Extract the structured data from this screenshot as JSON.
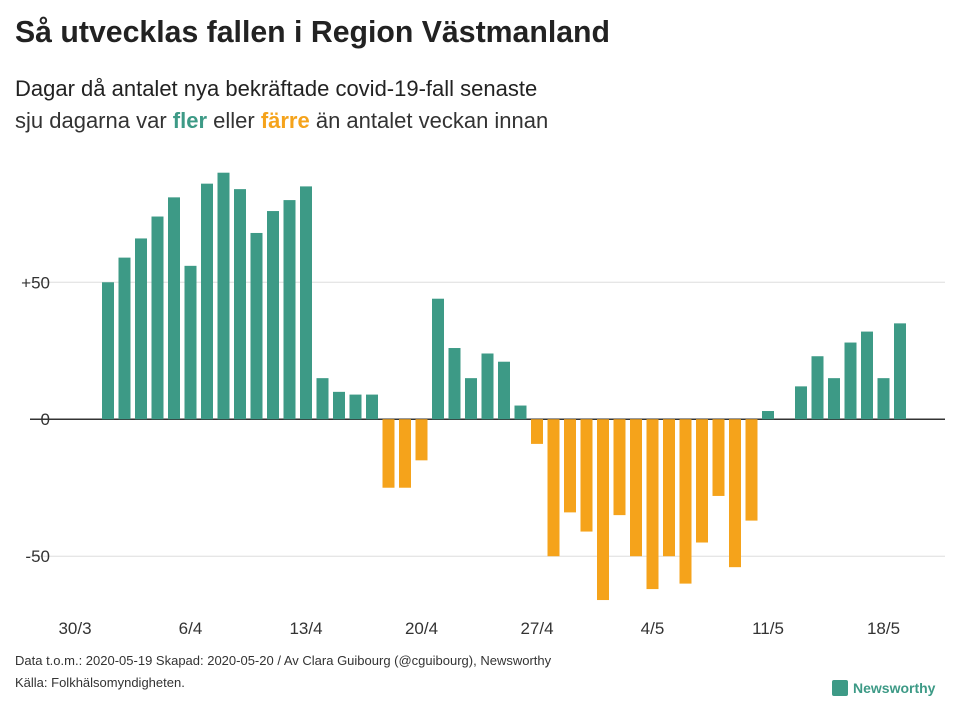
{
  "chart_data": {
    "type": "bar",
    "title": "Så utvecklas fallen i Region Västmanland",
    "subtitle": {
      "line1": "Dagar då antalet nya bekräftade covid-19-fall senaste",
      "line2_start": "sju dagarna var ",
      "more": "fler",
      "middle": " eller ",
      "fewer": "färre",
      "line2_end": " än antalet veckan innan"
    },
    "color_positive": "#3d9a86",
    "color_negative": "#f5a31b",
    "categories": [
      "30/3",
      null,
      null,
      null,
      null,
      null,
      null,
      "6/4",
      null,
      null,
      null,
      null,
      null,
      null,
      "13/4",
      null,
      null,
      null,
      null,
      null,
      null,
      "20/4",
      null,
      null,
      null,
      null,
      null,
      null,
      "27/4",
      null,
      null,
      null,
      null,
      null,
      null,
      "4/5",
      null,
      null,
      null,
      null,
      null,
      null,
      "11/5",
      null,
      null,
      null,
      null,
      null,
      null,
      "18/5",
      null
    ],
    "values": [
      null,
      null,
      50,
      59,
      66,
      74,
      81,
      56,
      86,
      90,
      84,
      68,
      76,
      80,
      85,
      15,
      10,
      9,
      9,
      -25,
      -25,
      -15,
      44,
      26,
      15,
      24,
      21,
      5,
      -9,
      -50,
      -34,
      -41,
      -66,
      -35,
      -50,
      -62,
      -50,
      -60,
      -45,
      -28,
      -54,
      -37,
      3,
      0,
      12,
      23,
      15,
      28,
      32,
      15,
      35
    ],
    "ylim": [
      -70,
      95
    ],
    "yticks": [
      {
        "value": 50,
        "label": "+50"
      },
      0,
      -50
    ],
    "grid": true,
    "footer": {
      "line1": "Data t.o.m.: 2020-05-19 Skapad: 2020-05-20 / Av Clara Guibourg (@cguibourg), Newsworthy",
      "line2": "Källa: Folkhälsomyndigheten.",
      "logo": "Newsworthy"
    }
  }
}
